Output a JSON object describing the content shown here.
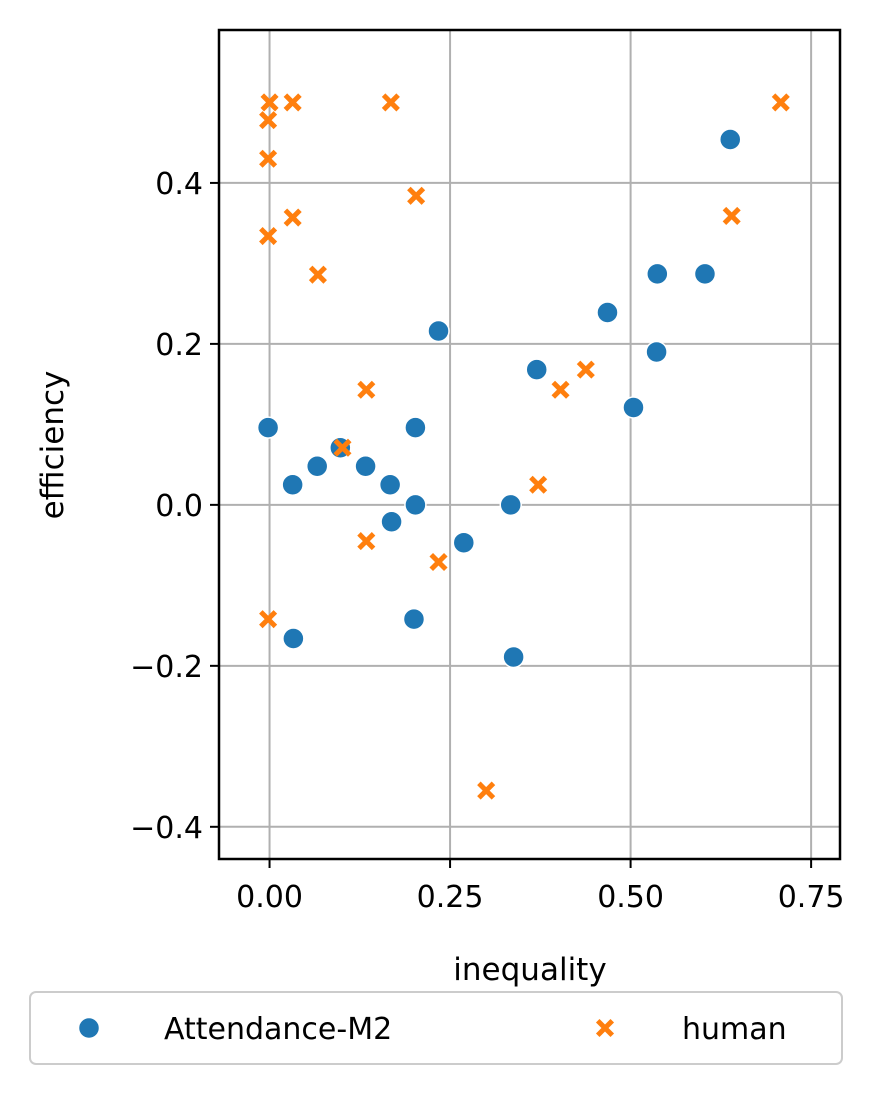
{
  "chart_data": {
    "type": "scatter",
    "title": "",
    "xlabel": "inequality",
    "ylabel": "efficiency",
    "xlim": [
      -0.07,
      0.79
    ],
    "ylim": [
      -0.44,
      0.59
    ],
    "xticks": [
      0.0,
      0.25,
      0.5,
      0.75
    ],
    "xtick_labels": [
      "0.00",
      "0.25",
      "0.50",
      "0.75"
    ],
    "yticks": [
      -0.4,
      -0.2,
      0.0,
      0.2,
      0.4
    ],
    "ytick_labels": [
      "−0.4",
      "−0.2",
      "0.0",
      "0.2",
      "0.4"
    ],
    "grid": true,
    "legend_position": "bottom-center, outside below axes",
    "series": [
      {
        "name": "Attendance-M2",
        "marker": "circle",
        "color": "#1f77b4",
        "points": [
          {
            "x": -0.002,
            "y": 0.096
          },
          {
            "x": 0.032,
            "y": 0.025
          },
          {
            "x": 0.033,
            "y": -0.166
          },
          {
            "x": 0.066,
            "y": 0.048
          },
          {
            "x": 0.098,
            "y": 0.071
          },
          {
            "x": 0.133,
            "y": 0.048
          },
          {
            "x": 0.167,
            "y": 0.025
          },
          {
            "x": 0.169,
            "y": -0.021
          },
          {
            "x": 0.2,
            "y": -0.142
          },
          {
            "x": 0.202,
            "y": 0.0
          },
          {
            "x": 0.202,
            "y": 0.096
          },
          {
            "x": 0.234,
            "y": 0.216
          },
          {
            "x": 0.269,
            "y": -0.047
          },
          {
            "x": 0.334,
            "y": 0.0
          },
          {
            "x": 0.338,
            "y": -0.189
          },
          {
            "x": 0.37,
            "y": 0.168
          },
          {
            "x": 0.468,
            "y": 0.239
          },
          {
            "x": 0.504,
            "y": 0.121
          },
          {
            "x": 0.536,
            "y": 0.19
          },
          {
            "x": 0.537,
            "y": 0.287
          },
          {
            "x": 0.603,
            "y": 0.287
          },
          {
            "x": 0.638,
            "y": 0.454
          }
        ]
      },
      {
        "name": "human",
        "marker": "x",
        "color": "#ff7f0e",
        "points": [
          {
            "x": 0.0,
            "y": 0.5
          },
          {
            "x": -0.002,
            "y": 0.478
          },
          {
            "x": -0.002,
            "y": 0.43
          },
          {
            "x": -0.002,
            "y": 0.334
          },
          {
            "x": -0.002,
            "y": -0.142
          },
          {
            "x": 0.032,
            "y": 0.5
          },
          {
            "x": 0.032,
            "y": 0.357
          },
          {
            "x": 0.067,
            "y": 0.286
          },
          {
            "x": 0.101,
            "y": 0.071
          },
          {
            "x": 0.134,
            "y": 0.143
          },
          {
            "x": 0.134,
            "y": -0.045
          },
          {
            "x": 0.168,
            "y": 0.5
          },
          {
            "x": 0.203,
            "y": 0.384
          },
          {
            "x": 0.234,
            "y": -0.071
          },
          {
            "x": 0.3,
            "y": -0.355
          },
          {
            "x": 0.372,
            "y": 0.025
          },
          {
            "x": 0.403,
            "y": 0.143
          },
          {
            "x": 0.438,
            "y": 0.168
          },
          {
            "x": 0.64,
            "y": 0.359
          },
          {
            "x": 0.708,
            "y": 0.5
          }
        ]
      }
    ]
  }
}
